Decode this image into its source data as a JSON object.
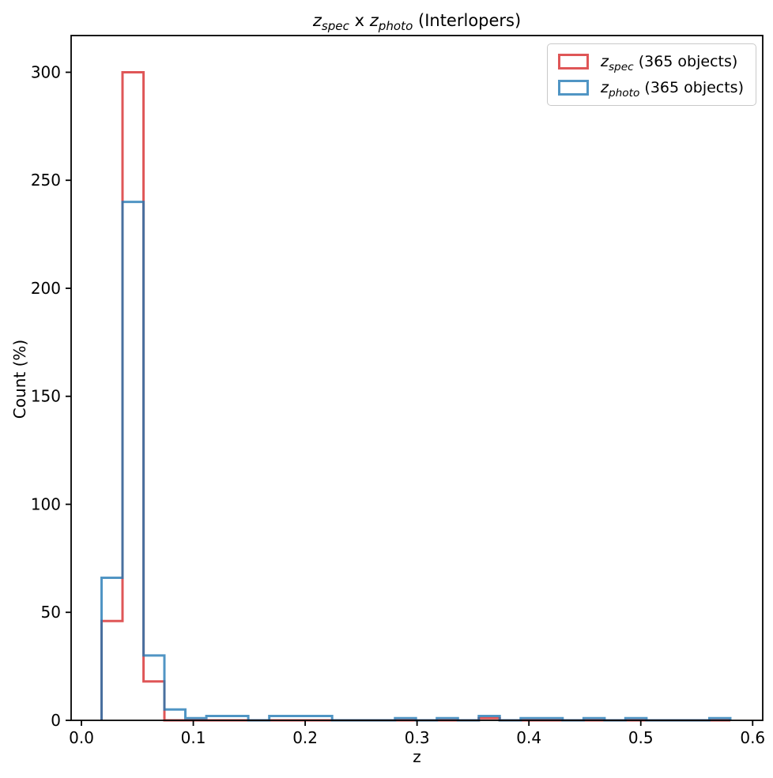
{
  "title": {
    "z1": "z",
    "sub1": "spec",
    "mid": " x ",
    "z2": "z",
    "sub2": "photo",
    "suffix": " (Interlopers)"
  },
  "chart_data": {
    "type": "histogram-step",
    "title": "z_spec x z_photo (Interlopers)",
    "xlabel": "z",
    "ylabel": "Count (%)",
    "xlim": [
      -0.0092,
      0.609
    ],
    "ylim": [
      0,
      317
    ],
    "xticks": [
      0.0,
      0.1,
      0.2,
      0.3,
      0.4,
      0.5,
      0.6
    ],
    "xtick_labels": [
      "0.0",
      "0.1",
      "0.2",
      "0.3",
      "0.4",
      "0.5",
      "0.6"
    ],
    "yticks": [
      0,
      50,
      100,
      150,
      200,
      250,
      300
    ],
    "ytick_labels": [
      "0",
      "50",
      "100",
      "150",
      "200",
      "250",
      "300"
    ],
    "grid": false,
    "legend_position": "upper right",
    "bin_edges": [
      0.018,
      0.0367,
      0.0555,
      0.0742,
      0.0929,
      0.1117,
      0.1304,
      0.1491,
      0.1679,
      0.1866,
      0.2053,
      0.2241,
      0.2428,
      0.2615,
      0.2803,
      0.299,
      0.3177,
      0.3365,
      0.3552,
      0.3739,
      0.3927,
      0.4114,
      0.4301,
      0.4489,
      0.4676,
      0.4863,
      0.5051,
      0.5238,
      0.5425,
      0.5613,
      0.58
    ],
    "series": [
      {
        "name": "z_spec",
        "label_z": "z",
        "label_sub": "spec",
        "label_suffix": " (365 objects)",
        "color": "#d62728",
        "alpha": 0.78,
        "linewidth": 3,
        "values": [
          46,
          300,
          18,
          0,
          0,
          0,
          0,
          0,
          0,
          0,
          0,
          0,
          0,
          0,
          0,
          0,
          0,
          0,
          1,
          0,
          0,
          0,
          0,
          0,
          0,
          0,
          0,
          0,
          0,
          0
        ]
      },
      {
        "name": "z_photo",
        "label_z": "z",
        "label_sub": "photo",
        "label_suffix": " (365 objects)",
        "color": "#1f77b4",
        "alpha": 0.78,
        "linewidth": 3,
        "values": [
          66,
          240,
          30,
          5,
          1,
          2,
          2,
          0,
          2,
          2,
          2,
          0,
          0,
          0,
          1,
          0,
          1,
          0,
          2,
          0,
          1,
          1,
          0,
          1,
          0,
          1,
          0,
          0,
          0,
          1
        ]
      }
    ],
    "axis_color": "#000000",
    "tick_length": 7
  }
}
